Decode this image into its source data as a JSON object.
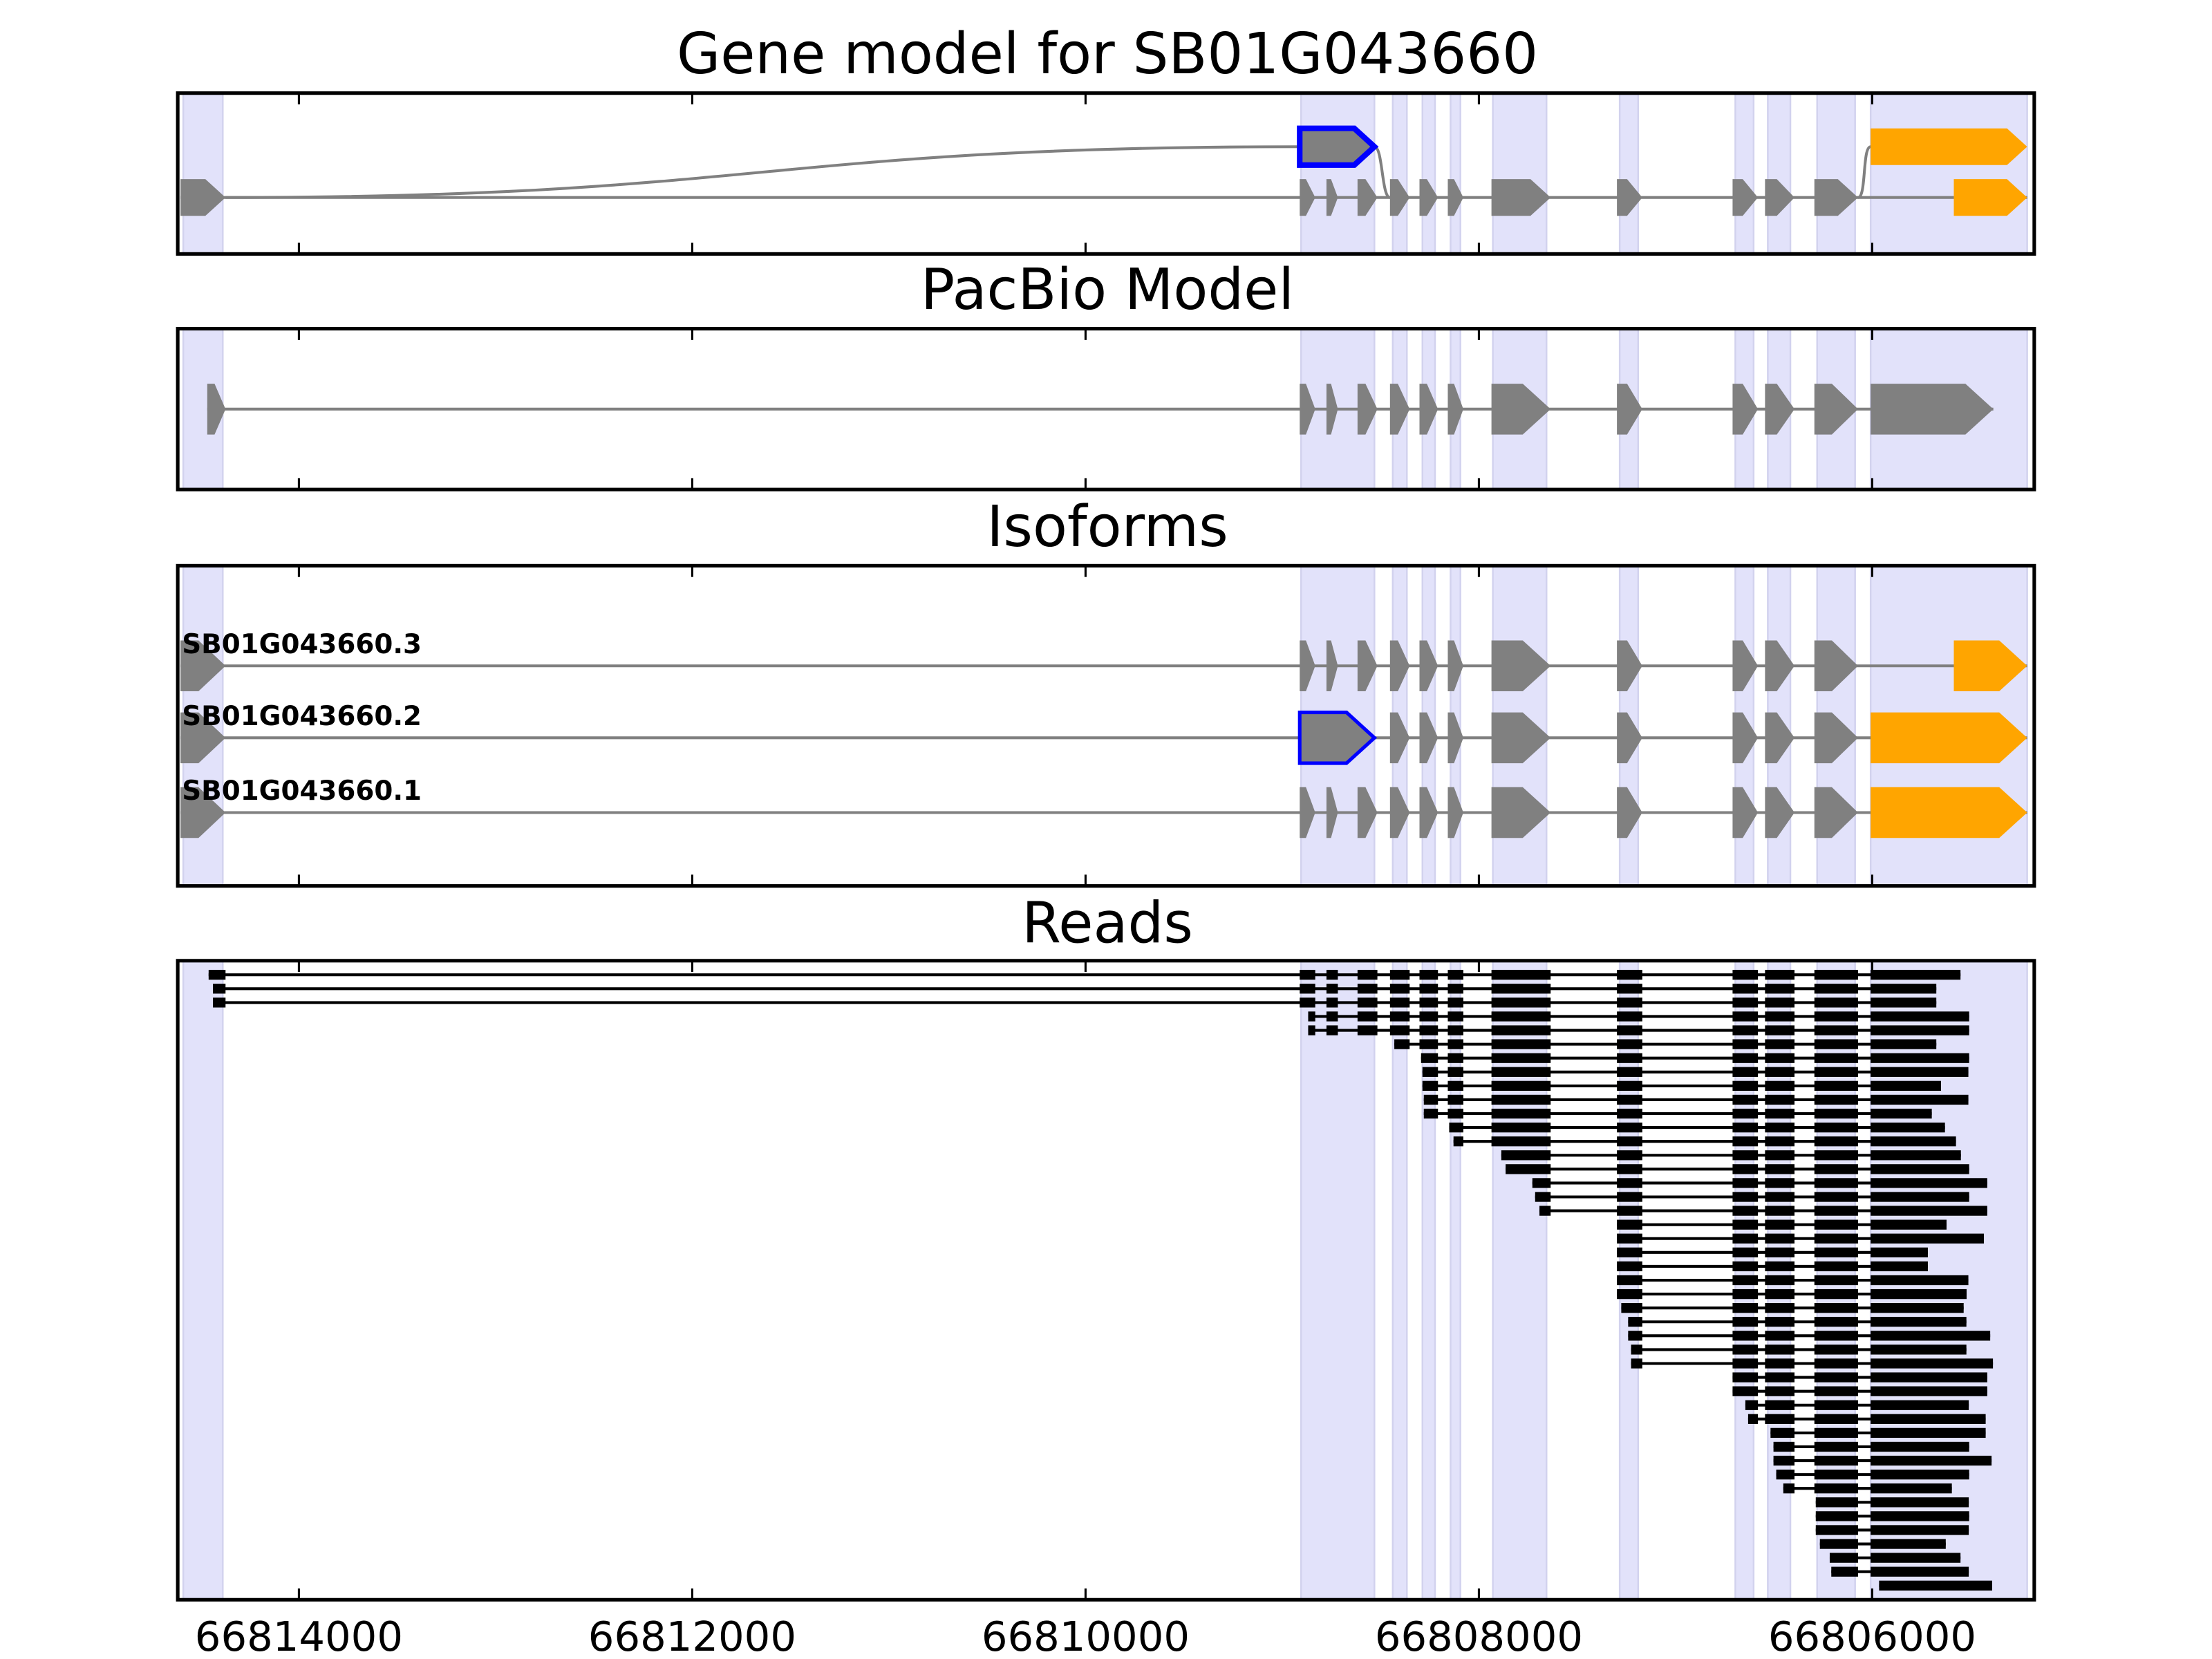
{
  "colors": {
    "band": "#E2E2FA",
    "band_edge": "#D2D2EE",
    "exon": "#808080",
    "intron": "#808080",
    "highlight_exon": "#FFA500",
    "outline": "#0000FF",
    "read": "#000000"
  },
  "chart_data": {
    "type": "gene-structure-tracks",
    "xaxis": {
      "range": [
        66814616,
        66805176
      ],
      "direction": "reversed",
      "ticks": [
        66814000,
        66812000,
        66810000,
        66808000,
        66806000
      ],
      "tick_labels": [
        "66814000",
        "66812000",
        "66810000",
        "66808000",
        "66806000"
      ]
    },
    "highlight_regions": [
      [
        66814588,
        66814387
      ],
      [
        66808904,
        66808531
      ],
      [
        66808438,
        66808366
      ],
      [
        66808287,
        66808223
      ],
      [
        66808144,
        66808094
      ],
      [
        66807929,
        66807656
      ],
      [
        66807284,
        66807190
      ],
      [
        66806696,
        66806603
      ],
      [
        66806531,
        66806416
      ],
      [
        66806280,
        66806087
      ],
      [
        66806008,
        66805212
      ]
    ],
    "panels": {
      "gene_model": {
        "title": "Gene model for SB01G043660",
        "upper_row": [
          {
            "s": 66808911,
            "e": 66808531,
            "kind": "outlined"
          },
          {
            "s": 66806008,
            "e": 66805212,
            "kind": "orange"
          }
        ],
        "lower_row": [
          {
            "s": 66814602,
            "e": 66814373,
            "kind": "default"
          },
          {
            "s": 66808911,
            "e": 66808832,
            "kind": "default"
          },
          {
            "s": 66808775,
            "e": 66808717,
            "kind": "default"
          },
          {
            "s": 66808617,
            "e": 66808516,
            "kind": "default"
          },
          {
            "s": 66808452,
            "e": 66808352,
            "kind": "default"
          },
          {
            "s": 66808302,
            "e": 66808208,
            "kind": "default"
          },
          {
            "s": 66808158,
            "e": 66808079,
            "kind": "default"
          },
          {
            "s": 66807936,
            "e": 66807635,
            "kind": "default"
          },
          {
            "s": 66807298,
            "e": 66807169,
            "kind": "default"
          },
          {
            "s": 66806710,
            "e": 66806581,
            "kind": "default"
          },
          {
            "s": 66806545,
            "e": 66806395,
            "kind": "default"
          },
          {
            "s": 66806294,
            "e": 66806072,
            "kind": "default"
          },
          {
            "s": 66805585,
            "e": 66805212,
            "kind": "orange"
          }
        ]
      },
      "pacbio": {
        "title": "PacBio Model",
        "exons": [
          {
            "s": 66814466,
            "e": 66814373,
            "kind": "default"
          },
          {
            "s": 66808911,
            "e": 66808832,
            "kind": "default"
          },
          {
            "s": 66808775,
            "e": 66808717,
            "kind": "default"
          },
          {
            "s": 66808617,
            "e": 66808516,
            "kind": "default"
          },
          {
            "s": 66808452,
            "e": 66808352,
            "kind": "default"
          },
          {
            "s": 66808302,
            "e": 66808208,
            "kind": "default"
          },
          {
            "s": 66808158,
            "e": 66808079,
            "kind": "default"
          },
          {
            "s": 66807936,
            "e": 66807635,
            "kind": "default"
          },
          {
            "s": 66807298,
            "e": 66807169,
            "kind": "default"
          },
          {
            "s": 66806710,
            "e": 66806581,
            "kind": "default"
          },
          {
            "s": 66806545,
            "e": 66806395,
            "kind": "default"
          },
          {
            "s": 66806294,
            "e": 66806072,
            "kind": "default"
          },
          {
            "s": 66806008,
            "e": 66805384,
            "kind": "default"
          }
        ]
      },
      "isoforms": {
        "title": "Isoforms",
        "items": [
          {
            "name": "SB01G043660.3",
            "exons": [
              {
                "s": 66814602,
                "e": 66814373,
                "kind": "default"
              },
              {
                "s": 66808911,
                "e": 66808832,
                "kind": "default"
              },
              {
                "s": 66808775,
                "e": 66808717,
                "kind": "default"
              },
              {
                "s": 66808617,
                "e": 66808516,
                "kind": "default"
              },
              {
                "s": 66808452,
                "e": 66808352,
                "kind": "default"
              },
              {
                "s": 66808302,
                "e": 66808208,
                "kind": "default"
              },
              {
                "s": 66808158,
                "e": 66808079,
                "kind": "default"
              },
              {
                "s": 66807936,
                "e": 66807635,
                "kind": "default"
              },
              {
                "s": 66807298,
                "e": 66807169,
                "kind": "default"
              },
              {
                "s": 66806710,
                "e": 66806581,
                "kind": "default"
              },
              {
                "s": 66806545,
                "e": 66806395,
                "kind": "default"
              },
              {
                "s": 66806294,
                "e": 66806072,
                "kind": "default"
              },
              {
                "s": 66805585,
                "e": 66805212,
                "kind": "orange"
              }
            ]
          },
          {
            "name": "SB01G043660.2",
            "exons": [
              {
                "s": 66814602,
                "e": 66814373,
                "kind": "default"
              },
              {
                "s": 66808911,
                "e": 66808531,
                "kind": "outlined"
              },
              {
                "s": 66808452,
                "e": 66808352,
                "kind": "default"
              },
              {
                "s": 66808302,
                "e": 66808208,
                "kind": "default"
              },
              {
                "s": 66808158,
                "e": 66808079,
                "kind": "default"
              },
              {
                "s": 66807936,
                "e": 66807635,
                "kind": "default"
              },
              {
                "s": 66807298,
                "e": 66807169,
                "kind": "default"
              },
              {
                "s": 66806710,
                "e": 66806581,
                "kind": "default"
              },
              {
                "s": 66806545,
                "e": 66806395,
                "kind": "default"
              },
              {
                "s": 66806294,
                "e": 66806072,
                "kind": "default"
              },
              {
                "s": 66806008,
                "e": 66805212,
                "kind": "orange"
              }
            ]
          },
          {
            "name": "SB01G043660.1",
            "exons": [
              {
                "s": 66814602,
                "e": 66814373,
                "kind": "default"
              },
              {
                "s": 66808911,
                "e": 66808832,
                "kind": "default"
              },
              {
                "s": 66808775,
                "e": 66808717,
                "kind": "default"
              },
              {
                "s": 66808617,
                "e": 66808516,
                "kind": "default"
              },
              {
                "s": 66808452,
                "e": 66808352,
                "kind": "default"
              },
              {
                "s": 66808302,
                "e": 66808208,
                "kind": "default"
              },
              {
                "s": 66808158,
                "e": 66808079,
                "kind": "default"
              },
              {
                "s": 66807936,
                "e": 66807635,
                "kind": "default"
              },
              {
                "s": 66807298,
                "e": 66807169,
                "kind": "default"
              },
              {
                "s": 66806710,
                "e": 66806581,
                "kind": "default"
              },
              {
                "s": 66806545,
                "e": 66806395,
                "kind": "default"
              },
              {
                "s": 66806294,
                "e": 66806072,
                "kind": "default"
              },
              {
                "s": 66806008,
                "e": 66805212,
                "kind": "orange"
              }
            ]
          }
        ]
      },
      "reads": {
        "title": "Reads",
        "exon_template": [
          [
            66814602,
            66814373
          ],
          [
            66808911,
            66808832
          ],
          [
            66808775,
            66808717
          ],
          [
            66808617,
            66808516
          ],
          [
            66808452,
            66808352
          ],
          [
            66808302,
            66808208
          ],
          [
            66808158,
            66808079
          ],
          [
            66807936,
            66807635
          ],
          [
            66807298,
            66807169
          ],
          [
            66806710,
            66806581
          ],
          [
            66806545,
            66806395
          ],
          [
            66806294,
            66806072
          ],
          [
            66806008,
            66805100
          ]
        ],
        "reads": [
          [
            66814459,
            66805551
          ],
          [
            66814437,
            66805674
          ],
          [
            66814437,
            66805674
          ],
          [
            66808868,
            66805507
          ],
          [
            66808868,
            66805507
          ],
          [
            66808430,
            66805674
          ],
          [
            66808294,
            66805507
          ],
          [
            66808287,
            66805511
          ],
          [
            66808287,
            66805650
          ],
          [
            66808280,
            66805511
          ],
          [
            66808280,
            66805697
          ],
          [
            66808151,
            66805630
          ],
          [
            66808129,
            66805574
          ],
          [
            66807886,
            66805549
          ],
          [
            66807864,
            66805507
          ],
          [
            66807728,
            66805415
          ],
          [
            66807714,
            66805507
          ],
          [
            66807692,
            66805415
          ],
          [
            66807298,
            66805622
          ],
          [
            66807298,
            66805432
          ],
          [
            66807298,
            66805717
          ],
          [
            66807298,
            66805717
          ],
          [
            66807298,
            66805511
          ],
          [
            66807298,
            66805520
          ],
          [
            66807276,
            66805535
          ],
          [
            66807241,
            66805521
          ],
          [
            66807241,
            66805400
          ],
          [
            66807226,
            66805521
          ],
          [
            66807226,
            66805386
          ],
          [
            66806710,
            66805415
          ],
          [
            66806710,
            66805415
          ],
          [
            66806645,
            66805509
          ],
          [
            66806631,
            66805423
          ],
          [
            66806517,
            66805423
          ],
          [
            66806502,
            66805507
          ],
          [
            66806502,
            66805393
          ],
          [
            66806488,
            66805507
          ],
          [
            66806452,
            66805595
          ],
          [
            66806287,
            66805509
          ],
          [
            66806287,
            66805507
          ],
          [
            66806287,
            66805509
          ],
          [
            66806266,
            66805626
          ],
          [
            66806216,
            66805551
          ],
          [
            66806208,
            66805509
          ],
          [
            66805965,
            66805390
          ]
        ]
      }
    }
  }
}
